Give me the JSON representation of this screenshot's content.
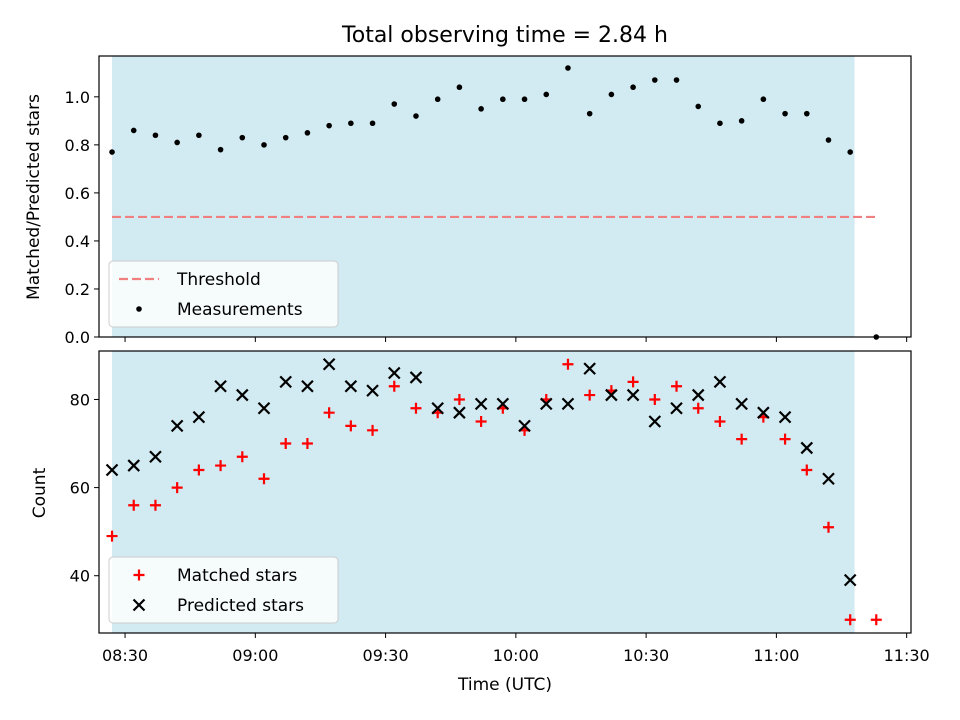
{
  "chart_data": [
    {
      "type": "scatter",
      "title": "Total observing time = 2.84 h",
      "ylabel": "Matched/Predicted stars",
      "ylim": [
        0,
        1.17
      ],
      "yticks": [
        0.0,
        0.2,
        0.4,
        0.6,
        0.8,
        1.0
      ],
      "ytick_labels": [
        "0.0",
        "0.2",
        "0.4",
        "0.6",
        "0.8",
        "1.0"
      ],
      "shaded_interval": [
        "08:27",
        "11:18"
      ],
      "legend": {
        "position": "lower-left",
        "entries": [
          "Threshold",
          "Measurements"
        ]
      },
      "threshold": {
        "name": "Threshold",
        "value": 0.5,
        "x_range": [
          "08:27",
          "11:23"
        ],
        "color": "#f08080",
        "style": "dashed"
      },
      "series": [
        {
          "name": "Measurements",
          "marker": "dot",
          "color": "#000000",
          "x": [
            "08:27",
            "08:32",
            "08:37",
            "08:42",
            "08:47",
            "08:52",
            "08:57",
            "09:02",
            "09:07",
            "09:12",
            "09:17",
            "09:22",
            "09:27",
            "09:32",
            "09:37",
            "09:42",
            "09:47",
            "09:52",
            "09:57",
            "10:02",
            "10:07",
            "10:12",
            "10:17",
            "10:22",
            "10:27",
            "10:32",
            "10:37",
            "10:42",
            "10:47",
            "10:52",
            "10:57",
            "11:02",
            "11:07",
            "11:12",
            "11:17",
            "11:23"
          ],
          "y": [
            0.77,
            0.86,
            0.84,
            0.81,
            0.84,
            0.78,
            0.83,
            0.8,
            0.83,
            0.85,
            0.88,
            0.89,
            0.89,
            0.97,
            0.92,
            0.99,
            1.04,
            0.95,
            0.99,
            0.99,
            1.01,
            1.12,
            0.93,
            1.01,
            1.04,
            1.07,
            1.07,
            0.96,
            0.89,
            0.9,
            0.99,
            0.93,
            0.93,
            0.82,
            0.77,
            0.0
          ]
        }
      ]
    },
    {
      "type": "scatter",
      "title": "",
      "xlabel": "Time (UTC)",
      "ylabel": "Count",
      "xlim": [
        "08:24",
        "11:31"
      ],
      "xticks": [
        "08:30",
        "09:00",
        "09:30",
        "10:00",
        "10:30",
        "11:00",
        "11:30"
      ],
      "ylim": [
        27,
        91
      ],
      "yticks": [
        40,
        60,
        80
      ],
      "ytick_labels": [
        "40",
        "60",
        "80"
      ],
      "shaded_interval": [
        "08:27",
        "11:18"
      ],
      "legend": {
        "position": "lower-left",
        "entries": [
          "Matched stars",
          "Predicted stars"
        ]
      },
      "series": [
        {
          "name": "Matched stars",
          "marker": "plus",
          "color": "#ff0000",
          "x": [
            "08:27",
            "08:32",
            "08:37",
            "08:42",
            "08:47",
            "08:52",
            "08:57",
            "09:02",
            "09:07",
            "09:12",
            "09:17",
            "09:22",
            "09:27",
            "09:32",
            "09:37",
            "09:42",
            "09:47",
            "09:52",
            "09:57",
            "10:02",
            "10:07",
            "10:12",
            "10:17",
            "10:22",
            "10:27",
            "10:32",
            "10:37",
            "10:42",
            "10:47",
            "10:52",
            "10:57",
            "11:02",
            "11:07",
            "11:12",
            "11:17",
            "11:23"
          ],
          "y": [
            49,
            56,
            56,
            60,
            64,
            65,
            67,
            62,
            70,
            70,
            77,
            74,
            73,
            83,
            78,
            77,
            80,
            75,
            78,
            73,
            80,
            88,
            81,
            82,
            84,
            80,
            83,
            78,
            75,
            71,
            76,
            71,
            64,
            51,
            30,
            30
          ]
        },
        {
          "name": "Predicted stars",
          "marker": "x",
          "color": "#000000",
          "x": [
            "08:27",
            "08:32",
            "08:37",
            "08:42",
            "08:47",
            "08:52",
            "08:57",
            "09:02",
            "09:07",
            "09:12",
            "09:17",
            "09:22",
            "09:27",
            "09:32",
            "09:37",
            "09:42",
            "09:47",
            "09:52",
            "09:57",
            "10:02",
            "10:07",
            "10:12",
            "10:17",
            "10:22",
            "10:27",
            "10:32",
            "10:37",
            "10:42",
            "10:47",
            "10:52",
            "10:57",
            "11:02",
            "11:07",
            "11:12",
            "11:17"
          ],
          "y": [
            64,
            65,
            67,
            74,
            76,
            83,
            81,
            78,
            84,
            83,
            88,
            83,
            82,
            86,
            85,
            78,
            77,
            79,
            79,
            74,
            79,
            79,
            87,
            81,
            81,
            75,
            78,
            81,
            84,
            79,
            77,
            76,
            69,
            62,
            39
          ]
        }
      ]
    }
  ],
  "colors": {
    "shade": "#add8e6",
    "shade_opacity": 0.55
  }
}
